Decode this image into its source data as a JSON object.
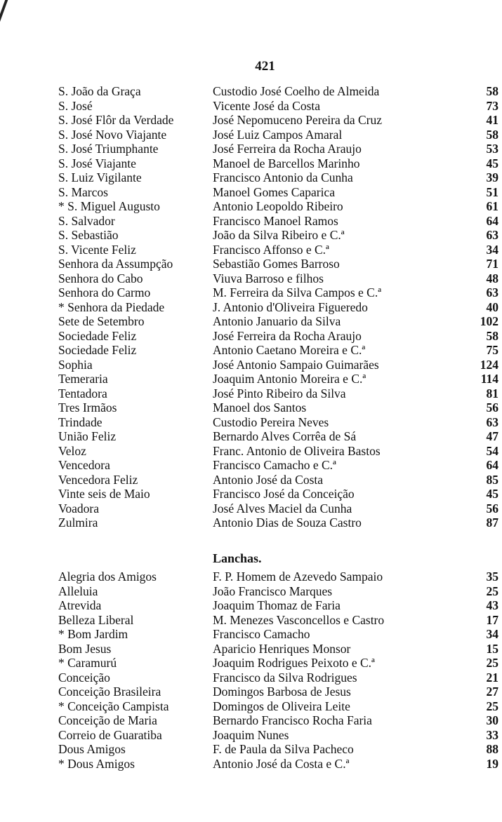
{
  "page_number": "421",
  "section1": [
    [
      "S. João da Graça",
      "Custodio José Coelho de Almeida",
      "58"
    ],
    [
      "S. José",
      "Vicente José da Costa",
      "73"
    ],
    [
      "S. José Flôr da Verdade",
      "José Nepomuceno Pereira da Cruz",
      "41"
    ],
    [
      "S. José Novo Viajante",
      "José Luiz Campos Amaral",
      "58"
    ],
    [
      "S. José Triumphante",
      "José Ferreira da Rocha Araujo",
      "53"
    ],
    [
      "S. José Viajante",
      "Manoel de Barcellos Marinho",
      "45"
    ],
    [
      "S. Luiz Vigilante",
      "Francisco Antonio da Cunha",
      "39"
    ],
    [
      "S. Marcos",
      "Manoel Gomes Caparica",
      "51"
    ],
    [
      "* S. Miguel Augusto",
      "Antonio Leopoldo Ribeiro",
      "61"
    ],
    [
      "S. Salvador",
      "Francisco Manoel Ramos",
      "64"
    ],
    [
      "S. Sebastião",
      "João da Silva Ribeiro e C.ª",
      "63"
    ],
    [
      "S. Vicente Feliz",
      "Francisco Affonso e C.ª",
      "34"
    ],
    [
      "Senhora da Assumpção",
      "Sebastião Gomes Barroso",
      "71"
    ],
    [
      "Senhora do Cabo",
      "Viuva Barroso e filhos",
      "48"
    ],
    [
      "Senhora do Carmo",
      "M. Ferreira da Silva Campos e C.ª",
      "63"
    ],
    [
      "* Senhora da Piedade",
      "J. Antonio d'Oliveira Figueredo",
      "40"
    ],
    [
      "Sete de Setembro",
      "Antonio Januario da Silva",
      "102"
    ],
    [
      "Sociedade Feliz",
      "José Ferreira da Rocha Araujo",
      "58"
    ],
    [
      "Sociedade Feliz",
      "Antonio Caetano Moreira e C.ª",
      "75"
    ],
    [
      "Sophia",
      "José Antonio Sampaio Guimarães",
      "124"
    ],
    [
      "Temeraria",
      "Joaquim Antonio Moreira e C.ª",
      "114"
    ],
    [
      "Tentadora",
      "José Pinto Ribeiro da Silva",
      "81"
    ],
    [
      "Tres Irmãos",
      "Manoel dos Santos",
      "56"
    ],
    [
      "Trindade",
      "Custodio Pereira Neves",
      "63"
    ],
    [
      "União Feliz",
      "Bernardo Alves Corrêa de Sá",
      "47"
    ],
    [
      "Veloz",
      "Franc. Antonio de Oliveira Bastos",
      "54"
    ],
    [
      "Vencedora",
      "Francisco Camacho e C.ª",
      "64"
    ],
    [
      "Vencedora Feliz",
      "Antonio José da Costa",
      "85"
    ],
    [
      "Vinte seis de Maio",
      "Francisco José da Conceição",
      "45"
    ],
    [
      "Voadora",
      "José Alves Maciel da Cunha",
      "56"
    ],
    [
      "Zulmira",
      "Antonio Dias de Souza Castro",
      "87"
    ]
  ],
  "section2_heading": "Lanchas.",
  "section2": [
    [
      "Alegria dos Amigos",
      "F. P. Homem de Azevedo Sampaio",
      "35"
    ],
    [
      "Alleluia",
      "João Francisco Marques",
      "25"
    ],
    [
      "Atrevida",
      "Joaquim Thomaz de Faria",
      "43"
    ],
    [
      "Belleza Liberal",
      "M. Menezes Vasconcellos e Castro",
      "17"
    ],
    [
      "* Bom Jardim",
      "Francisco Camacho",
      "34"
    ],
    [
      "Bom Jesus",
      "Aparicio Henriques Monsor",
      "15"
    ],
    [
      "* Caramurú",
      "Joaquim Rodrigues Peixoto e C.ª",
      "25"
    ],
    [
      "Conceição",
      "Francisco da Silva Rodrigues",
      "21"
    ],
    [
      "Conceição Brasileira",
      "Domingos Barbosa de Jesus",
      "27"
    ],
    [
      "* Conceição Campista",
      "Domingos de Oliveira Leite",
      "25"
    ],
    [
      "Conceição de Maria",
      "Bernardo Francisco Rocha Faria",
      "30"
    ],
    [
      "Correio de Guaratiba",
      "Joaquim Nunes",
      "33"
    ],
    [
      "Dous Amigos",
      "F. de Paula da Silva Pacheco",
      "88"
    ],
    [
      "* Dous Amigos",
      "Antonio José da Costa e C.ª",
      "19"
    ]
  ]
}
